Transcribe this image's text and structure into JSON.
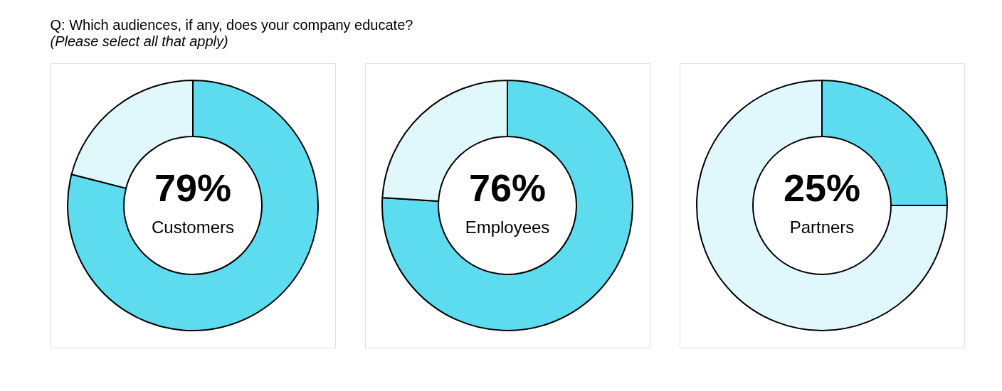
{
  "chart_data": [
    {
      "type": "donut",
      "title": "Q: Which audiences, if any, does your company educate?",
      "subtitle": "(Please select all that apply)",
      "categories": [
        "Customers",
        null
      ],
      "values": [
        79,
        21
      ],
      "colors": [
        "#5ddcf0",
        "#e0f8fc"
      ],
      "value_labels": [
        "79%",
        null
      ]
    },
    {
      "type": "donut",
      "categories": [
        "Employees",
        null
      ],
      "values": [
        76,
        24
      ],
      "colors": [
        "#5ddcf0",
        "#e0f8fc"
      ],
      "value_labels": [
        "76%",
        null
      ]
    },
    {
      "type": "donut",
      "categories": [
        "Partners",
        null
      ],
      "values": [
        25,
        75
      ],
      "colors": [
        "#5ddcf0",
        "#e0f8fc"
      ],
      "value_labels": [
        "25%",
        null
      ]
    }
  ]
}
